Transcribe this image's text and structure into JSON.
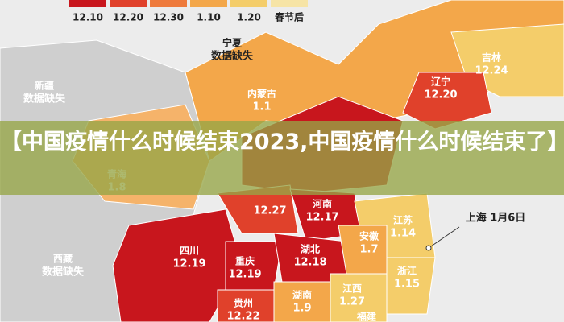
{
  "legend": [
    {
      "label": "12.10",
      "color": "#c8161d"
    },
    {
      "label": "12.20",
      "color": "#e0412b"
    },
    {
      "label": "12.30",
      "color": "#ee7a3c"
    },
    {
      "label": "1.10",
      "color": "#f3a74a"
    },
    {
      "label": "1.20",
      "color": "#f4cd6a"
    },
    {
      "label": "春节后",
      "color": "#f6e4a6"
    }
  ],
  "regions": [
    {
      "name": "宁夏",
      "value": "数据缺失"
    },
    {
      "name": "新疆",
      "value": "数据缺失"
    },
    {
      "name": "内蒙古",
      "value": "1.1"
    },
    {
      "name": "吉林",
      "value": "12.24"
    },
    {
      "name": "辽宁",
      "value": "12.20"
    },
    {
      "name": "青海",
      "value": "1.8"
    },
    {
      "value": "12.27"
    },
    {
      "name": "河南",
      "value": "12.17"
    },
    {
      "name": "江苏",
      "value": "1.14"
    },
    {
      "name": "四川",
      "value": "12.19"
    },
    {
      "name": "湖北",
      "value": "12.18"
    },
    {
      "name": "安徽",
      "value": "1.7"
    },
    {
      "name": "西藏",
      "value": "数据缺失"
    },
    {
      "name": "重庆",
      "value": "12.19"
    },
    {
      "name": "浙江",
      "value": "1.15"
    },
    {
      "name": "湖南",
      "value": "1.9"
    },
    {
      "name": "江西",
      "value": "1.27"
    },
    {
      "name": "贵州",
      "value": "12.22"
    },
    {
      "name": "福建"
    }
  ],
  "callout": "上海 1月6日",
  "banner": "【中国疫情什么时候结束2023,中国疫情什么时候结束了】"
}
